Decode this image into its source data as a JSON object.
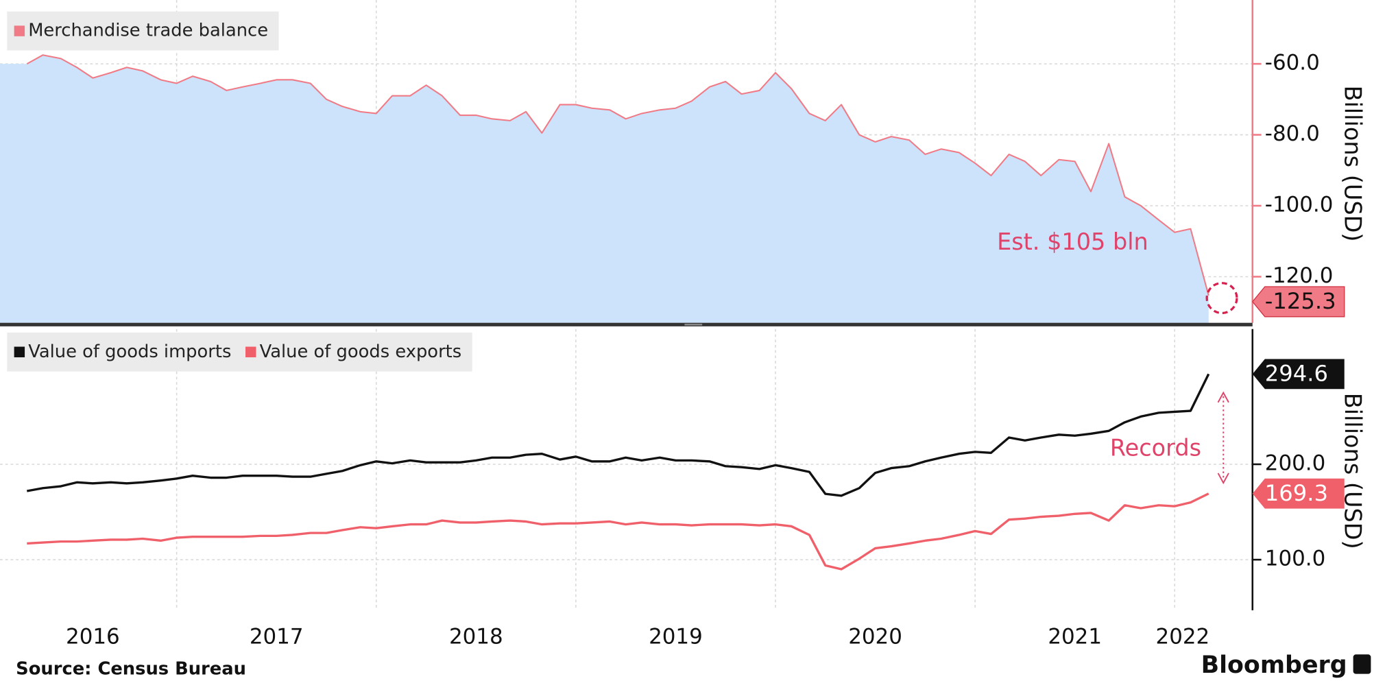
{
  "chart_data": [
    {
      "type": "area",
      "legend": "top-left",
      "ylabel": "Billions (USD)",
      "annotation": "Est. $105 bln",
      "x": [
        2016.25,
        2016.33,
        2016.42,
        2016.5,
        2016.58,
        2016.67,
        2016.75,
        2016.83,
        2016.92,
        2017,
        2017.08,
        2017.17,
        2017.25,
        2017.33,
        2017.42,
        2017.5,
        2017.58,
        2017.67,
        2017.75,
        2017.83,
        2017.92,
        2018,
        2018.08,
        2018.17,
        2018.25,
        2018.33,
        2018.42,
        2018.5,
        2018.58,
        2018.67,
        2018.75,
        2018.83,
        2018.92,
        2019,
        2019.08,
        2019.17,
        2019.25,
        2019.33,
        2019.42,
        2019.5,
        2019.58,
        2019.67,
        2019.75,
        2019.83,
        2019.92,
        2020,
        2020.08,
        2020.17,
        2020.25,
        2020.33,
        2020.42,
        2020.5,
        2020.58,
        2020.67,
        2020.75,
        2020.83,
        2020.92,
        2021,
        2021.08,
        2021.17,
        2021.25,
        2021.33,
        2021.42,
        2021.5,
        2021.58,
        2021.67,
        2021.75,
        2021.83,
        2021.92,
        2022,
        2022.08,
        2022.17
      ],
      "xlim": [
        2016.115,
        2022.39
      ],
      "xgrid": [
        2017,
        2018,
        2019,
        2020,
        2021,
        2022
      ],
      "ylim": [
        -133,
        -43.25
      ],
      "yticks": [
        {
          "value": -60,
          "label": "-60.0"
        },
        {
          "value": -80,
          "label": "-80.0"
        },
        {
          "value": -100,
          "label": "-100.0"
        },
        {
          "value": -120,
          "label": "-120.0"
        }
      ],
      "series": [
        {
          "name": "Merchandise trade balance",
          "color": "#f07b86",
          "fill": "#cce3fb",
          "values": [
            -60,
            -57.5,
            -58.5,
            -61,
            -64,
            -62.5,
            -61,
            -62,
            -64.5,
            -65.5,
            -63.5,
            -65,
            -67.5,
            -66.5,
            -65.5,
            -64.5,
            -64.5,
            -65.5,
            -70,
            -72,
            -73.5,
            -74,
            -69,
            -69,
            -66,
            -69,
            -74.5,
            -74.5,
            -75.5,
            -76,
            -73.5,
            -79.5,
            -71.5,
            -71.5,
            -72.5,
            -73,
            -75.5,
            -74,
            -73,
            -72.5,
            -70.5,
            -66.5,
            -65,
            -68.5,
            -67.5,
            -62.5,
            -67,
            -74,
            -76,
            -71.5,
            -80,
            -82,
            -80.5,
            -81.5,
            -85.5,
            -84,
            -85,
            -88,
            -91.5,
            -85.5,
            -87.5,
            -91.5,
            -87,
            -87.5,
            -96,
            -82.5,
            -97.5,
            -100,
            -104,
            -107.5,
            -106.5,
            -125.3
          ]
        }
      ]
    },
    {
      "type": "line",
      "legend": "top-left",
      "ylabel": "Billions (USD)",
      "annotation": "Records",
      "x": [
        2016.25,
        2016.33,
        2016.42,
        2016.5,
        2016.58,
        2016.67,
        2016.75,
        2016.83,
        2016.92,
        2017,
        2017.08,
        2017.17,
        2017.25,
        2017.33,
        2017.42,
        2017.5,
        2017.58,
        2017.67,
        2017.75,
        2017.83,
        2017.92,
        2018,
        2018.08,
        2018.17,
        2018.25,
        2018.33,
        2018.42,
        2018.5,
        2018.58,
        2018.67,
        2018.75,
        2018.83,
        2018.92,
        2019,
        2019.08,
        2019.17,
        2019.25,
        2019.33,
        2019.42,
        2019.5,
        2019.58,
        2019.67,
        2019.75,
        2019.83,
        2019.92,
        2020,
        2020.08,
        2020.17,
        2020.25,
        2020.33,
        2020.42,
        2020.5,
        2020.58,
        2020.67,
        2020.75,
        2020.83,
        2020.92,
        2021,
        2021.08,
        2021.17,
        2021.25,
        2021.33,
        2021.42,
        2021.5,
        2021.58,
        2021.67,
        2021.75,
        2021.83,
        2021.92,
        2022,
        2022.08,
        2022.17
      ],
      "xlim": [
        2016.115,
        2022.39
      ],
      "xgrid": [
        2017,
        2018,
        2019,
        2020,
        2021,
        2022
      ],
      "xticks": [
        {
          "value": 2016.58,
          "label": "2016"
        },
        {
          "value": 2017.5,
          "label": "2017"
        },
        {
          "value": 2018.5,
          "label": "2018"
        },
        {
          "value": 2019.5,
          "label": "2019"
        },
        {
          "value": 2020.5,
          "label": "2020"
        },
        {
          "value": 2021.5,
          "label": "2021"
        },
        {
          "value": 2022.04,
          "label": "2022"
        }
      ],
      "ylim": [
        47,
        339
      ],
      "yticks": [
        {
          "value": 100,
          "label": "100.0"
        },
        {
          "value": 200,
          "label": "200.0"
        }
      ],
      "series": [
        {
          "name": "Value of goods imports",
          "color": "#111111",
          "values": [
            172,
            175,
            177,
            181,
            180,
            181,
            180,
            181,
            183,
            185,
            188,
            186,
            186,
            188,
            188,
            188,
            187,
            187,
            190,
            193,
            199,
            203,
            201,
            204,
            202,
            202,
            202,
            204,
            207,
            207,
            210,
            211,
            205,
            208,
            203,
            203,
            207,
            204,
            207,
            204,
            204,
            203,
            198,
            197,
            195,
            199,
            196,
            192,
            169,
            167,
            175,
            191,
            196,
            198,
            203,
            207,
            211,
            213,
            212,
            228,
            225,
            228,
            231,
            230,
            232,
            235,
            244,
            250,
            254,
            255,
            256,
            294.6
          ]
        },
        {
          "name": "Value of goods exports",
          "color": "#f0606a",
          "values": [
            117,
            118,
            119,
            119,
            120,
            121,
            121,
            122,
            120,
            123,
            124,
            124,
            124,
            124,
            125,
            125,
            126,
            128,
            128,
            131,
            134,
            133,
            135,
            137,
            137,
            141,
            139,
            139,
            140,
            141,
            140,
            137,
            138,
            138,
            139,
            140,
            137,
            139,
            137,
            137,
            136,
            137,
            137,
            137,
            136,
            137,
            135,
            126,
            94,
            90,
            101,
            112,
            114,
            117,
            120,
            122,
            126,
            130,
            127,
            142,
            143,
            145,
            146,
            148,
            149,
            141,
            157,
            154,
            157,
            156,
            160,
            169.3
          ]
        }
      ]
    }
  ],
  "source": "Source: Census Bureau",
  "brand": "Bloomberg"
}
